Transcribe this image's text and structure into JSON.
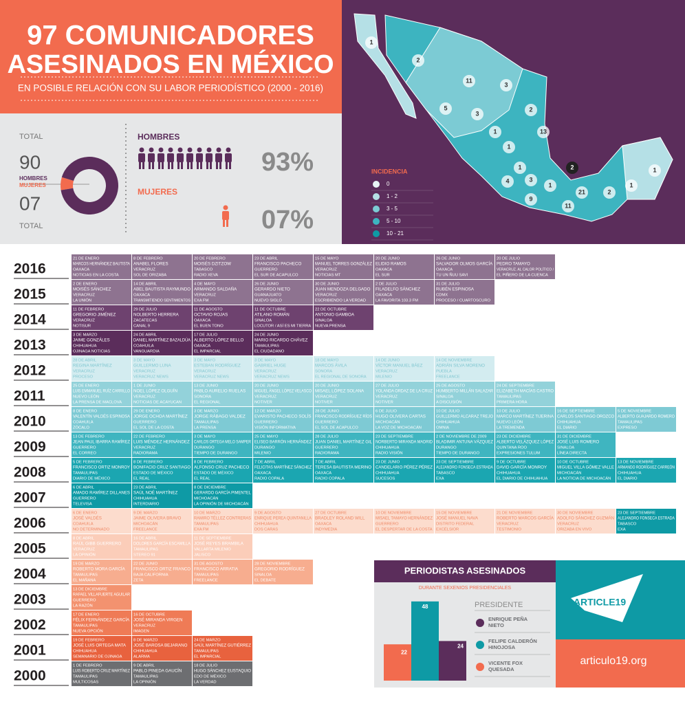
{
  "header": {
    "title_1": "97 COMUNICADORES",
    "title_2": "ASESINADOS EN MÉXICO",
    "subtitle": "EN POSIBLE RELACIÓN CON SU LABOR PERIODÍSTICO (2000 - 2016)"
  },
  "stats": {
    "total_top": "TOTAL",
    "total_bottom": "TOTAL",
    "men_label": "HOMBRES",
    "women_label": "MUJERES",
    "men": {
      "value": 90,
      "label": "90"
    },
    "women": {
      "value": 7,
      "label": "07"
    },
    "men_heading": "HOMBRES",
    "women_heading": "MUJERES",
    "men_pct": {
      "value": 93,
      "label": "93%"
    },
    "women_pct": {
      "value": 7,
      "label": "07%"
    },
    "men_color": "#5b2d5b",
    "women_color": "#f26b4e"
  },
  "map": {
    "legend_title": "INCIDENCIA",
    "legend": [
      {
        "label": "0",
        "color": "#e8f4f6"
      },
      {
        "label": "1 - 2",
        "color": "#b5e0e6"
      },
      {
        "label": "3 - 5",
        "color": "#7ccbd4"
      },
      {
        "label": "5 - 10",
        "color": "#3db4c0"
      },
      {
        "label": "10 - 21",
        "color": "#0e9aa5"
      }
    ],
    "markers": [
      1,
      2,
      11,
      3,
      2,
      5,
      3,
      13,
      1,
      1,
      2,
      1,
      4,
      3,
      1,
      1,
      21,
      9,
      11,
      2,
      1
    ]
  },
  "timeline": {
    "rows": [
      {
        "year": "2016",
        "color": "#8e7390",
        "text_color": "#ffffff",
        "entries": [
          [
            "21 DE ENERO",
            "MARCOS HERNÁNDEZ BAUTISTA",
            "OAXACA",
            "NOTICIAS EN LA COSTA"
          ],
          [
            "8 DE FEBRERO",
            "ANABEL FLORES",
            "VERACRUZ",
            "SOL DE ORIZABA"
          ],
          [
            "20 DE FEBRERO",
            "MOISÉS DZITZOW",
            "TABASCO",
            "RADIO XEVA"
          ],
          [
            "23 DE ABRIL",
            "FRANCISCO PACHECO",
            "GUERRERO",
            "EL SUR DE ACAPULCO"
          ],
          [
            "15 DE MAYO",
            "MANUEL TORRES GONZÁLEZ",
            "VERACRUZ",
            "NOTICIAS MT"
          ],
          [
            "20 DE JUNIO",
            "ELIDIO RAMOS",
            "OAXACA",
            "EL SUR"
          ],
          [
            "26 DE JUNIO",
            "SALVADOR OLMOS GARCÍA",
            "OAXACA",
            "TU UN ÑUU SAVI"
          ],
          [
            "20 DE JULIO",
            "PEDRO TAMAYO",
            "VERACRUZ. AL CALOR POLÍTICO /",
            "EL PIÑERO DE LA CUENCA"
          ]
        ]
      },
      {
        "year": "2015",
        "color": "#8e7390",
        "text_color": "#ffffff",
        "entries": [
          [
            "2 DE ENERO",
            "MOISÉS SÁNCHEZ",
            "VERACRUZ",
            "LA UNIÓN"
          ],
          [
            "14 DE ABRIL",
            "ABEL BAUTISTA RAYMUNDO",
            "OAXACA",
            "TRANSMITIENDO SENTIMIENTOS"
          ],
          [
            "4 DE MAYO",
            "ARMANDO SALDAÑA",
            "VERACRUZ",
            "EXA FM"
          ],
          [
            "26 DE JUNIO",
            "GERARDO NIETO",
            "GUANAJUATO",
            "NUEVO SIGLO"
          ],
          [
            "30 DE JUNIO",
            "JUAN MENDOZA DELGADO",
            "VERACRUZ",
            "ESCRIBIENDO LA VERDAD"
          ],
          [
            "2 DE JULIO",
            "FILADELFO SÁNCHEZ",
            "OAXACA",
            "LA FAVORITA 103.3 FM"
          ],
          [
            "31 DE JULIO",
            "RUBÉN ESPINOSA",
            "CDMX",
            "PROCESO / CUARTOSCURO"
          ]
        ]
      },
      {
        "year": "2014",
        "color": "#6e426f",
        "text_color": "#ffffff",
        "entries": [
          [
            "11 DE FEBRERO",
            "GREGORIO JIMÉNEZ",
            "VERACRUZ",
            "NOTISUR"
          ],
          [
            "29 DE JULIO",
            "NOLBERTO HERRERA",
            "ZACATECAS",
            "CANAL 9"
          ],
          [
            "11 DE AGOSTO",
            "OCTAVIO ROJAS",
            "OAXACA",
            "EL BUEN TONO"
          ],
          [
            "11 DE OCTUBRE",
            "ATILANO ROMÁN",
            "SINALOA",
            "LOCUTOR / ASÍ ES MI TIERRA"
          ],
          [
            "22 DE OCTUBRE",
            "ANTONIO GAMBOA",
            "SINALOA",
            "NUEVA PRENSA"
          ]
        ]
      },
      {
        "year": "2013",
        "color": "#5b2d5b",
        "text_color": "#ffffff",
        "entries": [
          [
            "3 DE MARZO",
            "JAIME GONZÁLES",
            "CHIHUAHUA",
            "OJINAGA NOTICIAS"
          ],
          [
            "24 DE ABRIL",
            "DANIEL MARTÍNEZ BAZALDÚA",
            "COAHUILA",
            "VANGUARDIA"
          ],
          [
            "17 DE JULIO",
            "ALBERTO LÓPEZ BELLO",
            "OAXACA",
            "EL IMPARCIAL"
          ],
          [
            "24 DE JUNIO",
            "MARIO RICARDO CHÁVEZ",
            "TAMAULIPAS",
            "EL CIUDADANO"
          ]
        ]
      },
      {
        "year": "2012",
        "color": "#d3ecf0",
        "text_color": "#7fc6d0",
        "entries": [
          [
            "28 DE ABRIL",
            "REGINA MARTÍNEZ",
            "VERACRUZ",
            "PROCESO"
          ],
          [
            "3 DE MAYO",
            "GUILLERMO LUNA",
            "VERACRUZ",
            "VERACRUZ NEWS"
          ],
          [
            "3 DE MAYO",
            "ESTEBAN RODRÍGUEZ",
            "VERACRUZ",
            "VERACRUZ NEWS"
          ],
          [
            "3 DE MAYO",
            "GABRIEL HUGE",
            "VERACRUZ",
            "VERACRUZ NEWS"
          ],
          [
            "18 DE MAYO",
            "MARCOS ÁVILA",
            "SONORA",
            "EL REGIONAL DE SONORA"
          ],
          [
            "14 DE JUNIO",
            "VÍCTOR MANUEL BÁEZ",
            "VERACRUZ",
            "MILENIO"
          ],
          [
            "14 DE NOVIEMBRE",
            "ADRIÁN SILVA MORENO",
            "PUEBLA",
            "FREELANCE"
          ]
        ]
      },
      {
        "year": "2011",
        "color": "#93d2da",
        "text_color": "#ffffff",
        "entries": [
          [
            "25 DE ENERO",
            "LUIS EMMANUEL RUÍZ CARRILLO",
            "NUEVO LEÓN",
            "LA PRENSA DE MACLOVA"
          ],
          [
            "1 DE JUNIO",
            "NOEL LÓPEZ OLGUÍN",
            "VERACRUZ",
            "NOTICIAS DE ACAYUCAN"
          ],
          [
            "13 DE JUNIO",
            "PABLO AURELIO RUELAS",
            "SONORA",
            "EL REGIONAL"
          ],
          [
            "20 DE JUNIO",
            "MIGUEL ÁNGEL LÓPEZ VELASCO",
            "VERACRUZ",
            "NOTIVER"
          ],
          [
            "20 DE JUNIO",
            "MISAEL LÓPEZ SOLANA",
            "VERACRUZ",
            "NOTIVER"
          ],
          [
            "27 DE JULIO",
            "YOLANDA ORDAZ DE LA CRUZ",
            "VERACRUZ",
            "NOTIVER"
          ],
          [
            "25 DE AGOSTO",
            "HUMBERTO MILLÁN SALAZAR",
            "SINALOA",
            "A DISCUSIÓN"
          ],
          [
            "24 DE SEPTIEMBRE",
            "ELIZABETH MACÍAS CASTRO",
            "TAMAULIPAS",
            "PRIMERA HORA"
          ]
        ]
      },
      {
        "year": "2010",
        "color": "#7ecad4",
        "text_color": "#ffffff",
        "entries": [
          [
            "8 DE ENERO",
            "VALENTÍN VALDÉS ESPINOSA",
            "COAHUILA",
            "ZÓCALO"
          ],
          [
            "29 DE ENERO",
            "JORGE OCHOA MARTÍNEZ",
            "GUERRERO",
            "EL SOL DE LA COSTA"
          ],
          [
            "3 DE MARZO",
            "JORGE RÁBAGO VALDEZ",
            "TAMAULIPAS",
            "LA PRENSA"
          ],
          [
            "12 DE MARZO",
            "EVARISTO PACHECO SOLÍS",
            "GUERRERO",
            "VISIÓN INFORMATIVA"
          ],
          [
            "28 DE JUNIO",
            "FRANCISCO RODRÍGUEZ RÍOS",
            "GUERRERO",
            "EL SOL DE ACAPULCO"
          ],
          [
            "6 DE JULIO",
            "HUGO OLIVERA CARTAS",
            "MICHOACÁN",
            "LA VOZ DE MICHOACÁN"
          ],
          [
            "10 DE JULIO",
            "GUILLERMO ALCARAZ TREJO",
            "CHIHUAHUA",
            "OMNIA"
          ],
          [
            "10 DE JULIO",
            "MARCO MARTÍNEZ TIJERINA",
            "NUEVO LEÓN",
            "LA TREMENDA"
          ],
          [
            "16 DE SEPTIEMBRE",
            "CARLOS SANTIAGO OROZCO",
            "CHIHUAHUA",
            "EL DIARIO"
          ],
          [
            "5 DE NOVIEMBRE",
            "ALBERTO GUAJARDO ROMERO",
            "TAMAULIPAS",
            "EXPRESO"
          ]
        ]
      },
      {
        "year": "2009",
        "color": "#3fb5c0",
        "text_color": "#ffffff",
        "entries": [
          [
            "13 DE FEBRERO",
            "JEAN PAUL IBARRA RAMÍREZ",
            "GUERRERO",
            "EL CORREO"
          ],
          [
            "22 DE FEBRERO",
            "LUIS MÉNDEZ HERNÁNDEZ",
            "VERACRUZ",
            "RADIORAMA"
          ],
          [
            "3 DE MAYO",
            "CARLOS ORTEGA MELO SAMPER",
            "DURANGO",
            "TIEMPO DE DURANGO"
          ],
          [
            "25 DE MAYO",
            "ELISEO BARRÓN HERNÁNDEZ",
            "DURANGO",
            "MILENIO"
          ],
          [
            "28 DE JULIO",
            "JUAN DANIEL MARTÍNEZ GIL",
            "GUERRERO",
            "RADIORAMA"
          ],
          [
            "23 DE SEPTIEMBRE",
            "NORBERTO MIRANDA MADRID",
            "CHIHUAHUA",
            "RADIO VISIÓN"
          ],
          [
            "2 DE NOVIEMBRE DE 2009",
            "BLADIMIR ANTUNA VÁZQUEZ",
            "DURANGO",
            "TIEMPO DE DURANGO"
          ],
          [
            "23 DE DICIEMBRE",
            "ALBERTO VELÁZQUEZ LÓPEZ",
            "QUINTANA ROO",
            "EXPRESIONES TULUM"
          ],
          [
            "31 DE DICIEMBRE",
            "JOSÉ LUIS ROMERO",
            "SINALOA",
            "LÍNEA DIRECTA"
          ]
        ]
      },
      {
        "year": "2008",
        "color": "#1ba6b1",
        "text_color": "#ffffff",
        "entries": [
          [
            "5 DE FEBRERO",
            "FRANCISCO ORTIZ MONROY",
            "TAMAULIPAS",
            "DIARIO DE MÉXICO"
          ],
          [
            "8 DE FEBRERO",
            "BONIFACIO CRUZ SANTIAGO",
            "ESTADO DE MÉXICO",
            "EL REAL"
          ],
          [
            "8 DE FEBRERO",
            "ALFONSO CRUZ PACHECO",
            "ESTADO DE MÉXICO",
            "EL REAL"
          ],
          [
            "7 DE ABRIL",
            "FELICITAS MARTÍNEZ SÁNCHEZ",
            "OAXACA",
            "RADIO COPALA"
          ],
          [
            "7 DE ABRIL",
            "TERESA BAUTISTA MERINO",
            "OAXACA",
            "RADIO COPALA"
          ],
          [
            "23 DE JUNIO",
            "CANDELARIO PÉREZ PÉREZ",
            "CHIHUAHUA",
            "SUCESOS"
          ],
          [
            "23 DE SEPTIEMBRE",
            "ALEJANDRO FONSECA ESTRADA",
            "TABASCO",
            "EXA"
          ],
          [
            "9 DE OCTUBRE",
            "DAVID GARCÍA MONROY",
            "CHIHUAHUA",
            "EL DIARIO DE CHIHUAHUA"
          ],
          [
            "10 DE OCTUBRE",
            "MIGUEL VILLA GÓMEZ VALLE",
            "MICHOACÁN",
            "LA NOTICIA DE MICHOACÁN"
          ],
          [
            "13 DE NOVIEMBRE",
            "ARMANDO RODRÍGUEZ CARREÓN",
            "CHIHUAHUA",
            "EL DIARIO"
          ]
        ]
      },
      {
        "year": "2007",
        "color": "#0e9aa5",
        "text_color": "#ffffff",
        "entries": [
          [
            "6 DE ABRIL",
            "AMADO RAMÍREZ DILLANES",
            "GUERRERO",
            "TELEVISA"
          ],
          [
            "23 DE ABRIL",
            "SAÚL NOÉ MARTÍNEZ",
            "CHIHUAHUA",
            "INTERDIARIO"
          ],
          [
            "8 DE DICIEMBRE",
            "GERARDO GARCÍA PIMENTEL",
            "MICHOACÁN",
            "LA OPINIÓN DE MICHOACÁN"
          ]
        ]
      },
      {
        "year": "2006",
        "color": "#fcdccd",
        "text_color": "#ee8663",
        "entries": [
          [
            "6 DE ENERO",
            "JOSÉ VALDÉS",
            "COAHUILA",
            "NO DETERMINADO"
          ],
          [
            "9 DE MARZO",
            "JAIME OLIVERA BRAVO",
            "MICHOACÁN",
            "FREELANCE"
          ],
          [
            "10 DE MARZO",
            "RAMIRO TÉLLEZ CONTRERAS",
            "TAMAULIPAS",
            "EXA FM"
          ],
          [
            "9 DE AGOSTO",
            "ENRIQUE PEREA QUINTANILLA",
            "CHIHUAHUA",
            "DOS CARAS"
          ],
          [
            "27 DE OCTUBRE",
            "BRADLEY ROLAND WILL",
            "OAXACA",
            "INDYMEDIA"
          ],
          [
            "10 DE NOVIEMBRE",
            "MISAEL TAMAYO HERNÁNDEZ",
            "GUERRERO",
            "EL DESPERTAR DE LA COSTA"
          ],
          [
            "15 DE NOVIEMBRE",
            "JOSÉ MANUEL NAVA",
            "DISTRITO FEDERAL",
            "EXCÉLSIOR"
          ],
          [
            "21 DE NOVIEMBRE",
            "ROBERTO MARCOS GARCÍA",
            "VERACRUZ",
            "TESTIMONIO"
          ],
          [
            "30 DE NOVIEMBRE",
            "ADOLFO SÁNCHEZ GUZMÁN",
            "VERACRUZ",
            "ORIZABA EN VIVO"
          ]
        ],
        "overflow": {
          "color": "#0e9aa5",
          "text_color": "#ffffff",
          "entries": [
            [
              "23 DE SEPTIEMBRE",
              "ALEJANDRO FONSECA ESTRADA",
              "TABASCO",
              "EXA"
            ]
          ]
        }
      },
      {
        "year": "2005",
        "color": "#fbcdb9",
        "text_color": "#ffffff",
        "entries": [
          [
            "8 DE ABRIL",
            "RAÚL GIBB GUERRERO",
            "VERACRUZ",
            "LA OPINIÓN"
          ],
          [
            "16 DE ABRIL",
            "DOLORES GARCÍA ESCAMILLA",
            "TAMAULIPAS",
            "STEREO 91"
          ],
          [
            "11 DE SEPTIEMBRE",
            "JOSÉ REYES BRAMBILA",
            "VALLARTA MILENIO",
            "JALISCO"
          ]
        ]
      },
      {
        "year": "2004",
        "color": "#f7ad8f",
        "text_color": "#ffffff",
        "entries": [
          [
            "19 DE MARZO",
            "ROBERTO MORA GARCÍA",
            "TAMAULIPAS",
            "EL MAÑANA"
          ],
          [
            "22 DE JUNIO",
            "FRANCISCO ORTIZ FRANCO",
            "BAJA CALIFORNIA",
            "ZETA"
          ],
          [
            "31 DE AGOSTO",
            "FRANCISCO ARRATIA",
            "TAMAULIPAS",
            "FREELANCE"
          ],
          [
            "28 DE NOVIEMBRE",
            "GREGORIO RODRÍGUEZ",
            "SINALOA",
            "EL DEBATE"
          ]
        ]
      },
      {
        "year": "2003",
        "color": "#f3926f",
        "text_color": "#ffffff",
        "entries": [
          [
            "13 DE DICIEMBRE",
            "RAFAEL VILLAFUERTE AGUILAR",
            "GUERRERO",
            "LA RAZÓN"
          ]
        ]
      },
      {
        "year": "2002",
        "color": "#ef7b56",
        "text_color": "#ffffff",
        "entries": [
          [
            "17 DE ENERO",
            "FÉLIX FERNÁNDEZ GARCÍA",
            "TAMAULIPAS",
            "NUEVA OPCIÓN"
          ],
          [
            "16 DE OCTUBRE",
            "JOSÉ MIRANDA VIRGEN",
            "VERACRUZ",
            "IMAGEN"
          ]
        ]
      },
      {
        "year": "2001",
        "color": "#e8623e",
        "text_color": "#ffffff",
        "entries": [
          [
            "19 DE FEBRERO",
            "JOSÉ LUIS ORTEGA MATA",
            "CHIHUAHUA",
            "SEMANARIO DE OJINAGA"
          ],
          [
            "8 DE MARZO",
            "JOSÉ BAROSA BEJARANO",
            "CHIHUAHUA",
            "ALARMA"
          ],
          [
            "24 DE MARZO",
            "SAÚL MARTÍNEZ GUTIÉRREZ",
            "TAMAULIPAS",
            "EL IMPARCIAL"
          ]
        ]
      },
      {
        "year": "2000",
        "color": "#6d6e71",
        "text_color": "#ffffff",
        "entries": [
          [
            "1 DE FEBRERO",
            "LUIS ROBERTO CRUZ MARTÍNEZ",
            "TAMAULIPAS",
            "MULTICOSAS"
          ],
          [
            "9 DE ABRIL",
            "PABLO PINEDA GAUCÍN",
            "TAMAULIPAS",
            "LA OPINIÓN"
          ],
          [
            "18 DE JULIO",
            "HUGO SÁNCHEZ EUSTAQUIO",
            "EDO DE MÉXICO",
            "LA VERDAD"
          ]
        ]
      }
    ]
  },
  "chart_data": {
    "type": "bar",
    "title": "PERIODISTAS ASESINADOS",
    "subtitle": "DURANTE SEXENIOS PRESIDENCIALES",
    "legend_title": "PRESIDENTE",
    "categories": [
      "VICENTE FOX QUESADA",
      "FELIPE CALDERÓN HINOJOSA",
      "ENRIQUE PEÑA NIETO"
    ],
    "values": [
      22,
      48,
      24
    ],
    "colors": [
      "#f26b4e",
      "#0e9aa5",
      "#5b2d5b"
    ],
    "legend_order": [
      "ENRIQUE PEÑA NIETO",
      "FELIPE CALDERÓN HINOJOSA",
      "VICENTE FOX QUESADA"
    ],
    "legend_colors": [
      "#5b2d5b",
      "#0e9aa5",
      "#f26b4e"
    ]
  },
  "footer": {
    "logo": "ARTICLE19",
    "url": "articulo19.org"
  }
}
